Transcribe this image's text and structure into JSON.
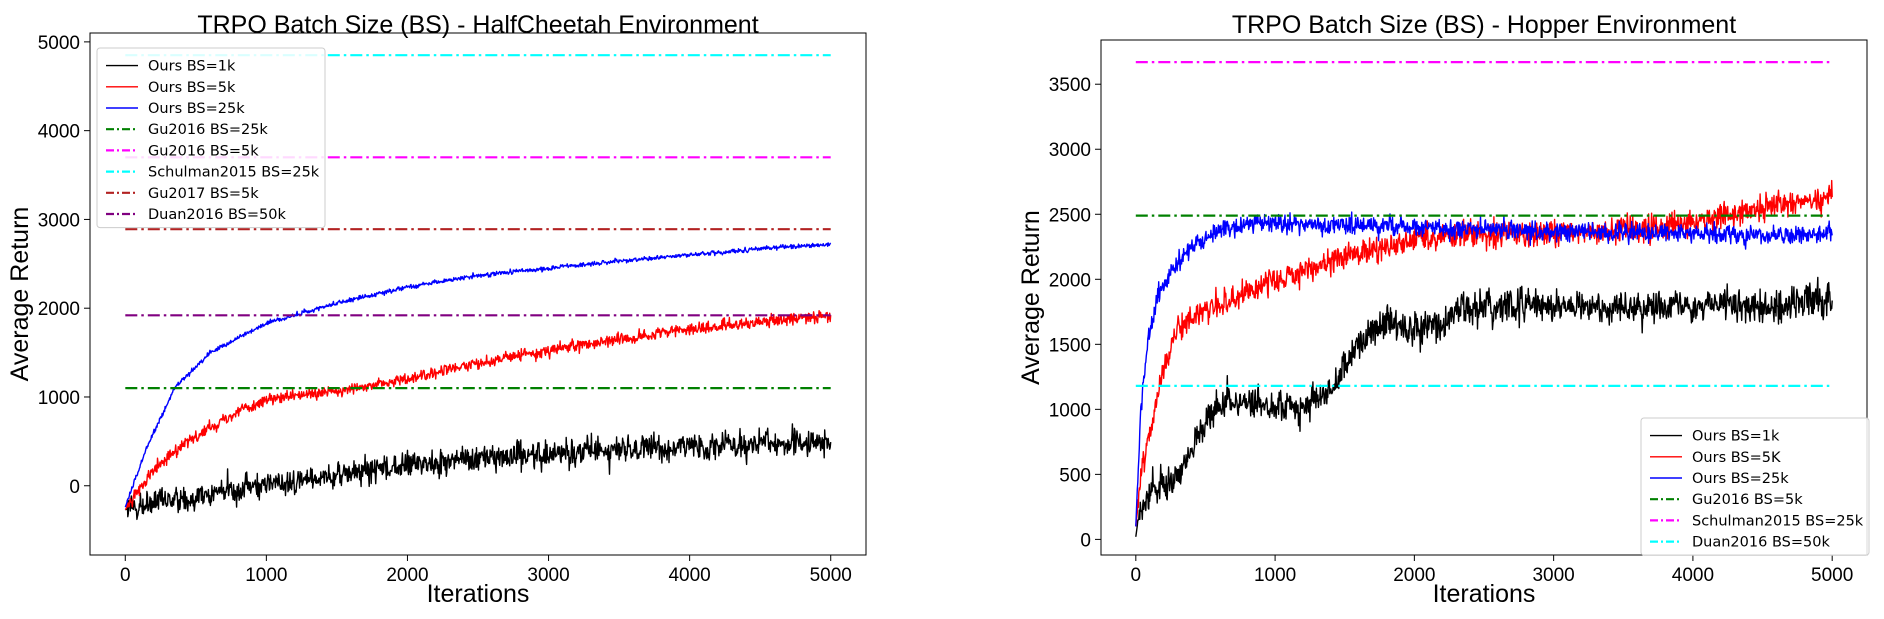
{
  "chart_data": [
    {
      "type": "line",
      "title": "TRPO Batch Size (BS) - HalfCheetah Environment",
      "xlabel": "Iterations",
      "ylabel": "Average Return",
      "xlim": [
        -250,
        5250
      ],
      "ylim": [
        -780,
        5100
      ],
      "xticks": [
        0,
        1000,
        2000,
        3000,
        4000,
        5000
      ],
      "yticks": [
        0,
        1000,
        2000,
        3000,
        4000,
        5000
      ],
      "legend_position": "upper-left",
      "series": [
        {
          "name": "Ours BS=1k",
          "color": "#000000",
          "style": "solid",
          "kind": "noisy",
          "x": [
            0,
            300,
            600,
            1000,
            1500,
            2000,
            2500,
            3000,
            3500,
            4000,
            4500,
            5000
          ],
          "y": [
            -270,
            -170,
            -90,
            20,
            120,
            230,
            310,
            370,
            400,
            440,
            470,
            480
          ],
          "noise": 200
        },
        {
          "name": "Ours BS=5k",
          "color": "#ff0000",
          "style": "solid",
          "kind": "noisy",
          "x": [
            0,
            200,
            500,
            800,
            1000,
            1500,
            2000,
            2500,
            3000,
            3500,
            4000,
            4500,
            5000
          ],
          "y": [
            -270,
            200,
            560,
            850,
            960,
            1070,
            1210,
            1380,
            1530,
            1650,
            1760,
            1850,
            1920
          ],
          "noise": 90
        },
        {
          "name": "Ours BS=25k",
          "color": "#0000ff",
          "style": "solid",
          "kind": "noisy",
          "x": [
            0,
            150,
            350,
            600,
            1000,
            1500,
            2000,
            2500,
            3000,
            3500,
            4000,
            4500,
            5000
          ],
          "y": [
            -240,
            420,
            1100,
            1500,
            1830,
            2060,
            2240,
            2370,
            2450,
            2530,
            2600,
            2670,
            2720
          ],
          "noise": 35
        },
        {
          "name": "Gu2016 BS=25k",
          "color": "#008000",
          "style": "dashdot",
          "kind": "const",
          "value": 1100
        },
        {
          "name": "Gu2016 BS=5k",
          "color": "#ff00ff",
          "style": "dashdot",
          "kind": "const",
          "value": 3700
        },
        {
          "name": "Schulman2015 BS=25k",
          "color": "#00ffff",
          "style": "dashdot",
          "kind": "const",
          "value": 4850
        },
        {
          "name": "Gu2017 BS=5k",
          "color": "#b22222",
          "style": "dashdot",
          "kind": "const",
          "value": 2890
        },
        {
          "name": "Duan2016 BS=50k",
          "color": "#800080",
          "style": "dashdot",
          "kind": "const",
          "value": 1920
        }
      ]
    },
    {
      "type": "line",
      "title": "TRPO Batch Size (BS) - Hopper Environment",
      "xlabel": "Iterations",
      "ylabel": "Average Return",
      "xlim": [
        -250,
        5250
      ],
      "ylim": [
        -120,
        3840
      ],
      "xticks": [
        0,
        1000,
        2000,
        3000,
        4000,
        5000
      ],
      "yticks": [
        0,
        500,
        1000,
        1500,
        2000,
        2500,
        3000,
        3500
      ],
      "legend_position": "lower-right",
      "series": [
        {
          "name": "Ours BS=1k",
          "color": "#000000",
          "style": "solid",
          "kind": "noisy",
          "x": [
            0,
            30,
            100,
            200,
            300,
            450,
            600,
            800,
            1000,
            1200,
            1400,
            1600,
            1800,
            2000,
            2200,
            2500,
            3000,
            3500,
            4000,
            4500,
            5000
          ],
          "y": [
            20,
            260,
            360,
            420,
            500,
            800,
            1050,
            1060,
            1000,
            1020,
            1150,
            1500,
            1700,
            1600,
            1680,
            1800,
            1800,
            1780,
            1800,
            1780,
            1850
          ],
          "noise": 170
        },
        {
          "name": "Ours BS=5K",
          "color": "#ff0000",
          "style": "solid",
          "kind": "noisy",
          "x": [
            0,
            40,
            100,
            200,
            300,
            500,
            700,
            1000,
            1300,
            1600,
            2000,
            2500,
            3000,
            3500,
            4000,
            4500,
            5000
          ],
          "y": [
            100,
            500,
            800,
            1300,
            1650,
            1750,
            1850,
            2000,
            2100,
            2200,
            2300,
            2350,
            2350,
            2380,
            2420,
            2550,
            2650
          ],
          "noise": 140
        },
        {
          "name": "Ours BS=25k",
          "color": "#0000ff",
          "style": "solid",
          "kind": "noisy",
          "x": [
            0,
            30,
            80,
            150,
            250,
            400,
            600,
            1000,
            1500,
            2000,
            2500,
            3000,
            3500,
            4000,
            4500,
            5000
          ],
          "y": [
            100,
            900,
            1500,
            1850,
            2050,
            2250,
            2400,
            2430,
            2420,
            2400,
            2380,
            2370,
            2350,
            2360,
            2330,
            2350
          ],
          "noise": 100
        },
        {
          "name": "Gu2016 BS=5k",
          "color": "#008000",
          "style": "dashdot",
          "kind": "const",
          "value": 2490
        },
        {
          "name": "Schulman2015 BS=25k",
          "color": "#ff00ff",
          "style": "dashdot",
          "kind": "const",
          "value": 3670
        },
        {
          "name": "Duan2016 BS=50k",
          "color": "#00ffff",
          "style": "dashdot",
          "kind": "const",
          "value": 1180
        }
      ]
    }
  ]
}
